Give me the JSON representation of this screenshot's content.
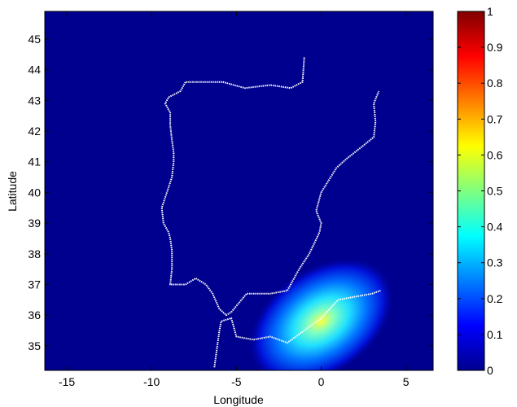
{
  "chart_data": {
    "type": "heatmap",
    "xlabel": "Longitude",
    "ylabel": "Latitude",
    "xlim": [
      -16.3,
      6.6
    ],
    "ylim": [
      34.2,
      45.9
    ],
    "xticks": [
      -15,
      -10,
      -5,
      0,
      5
    ],
    "xtick_labels": [
      "-15",
      "-10",
      "-5",
      "0",
      "5"
    ],
    "yticks": [
      35,
      36,
      37,
      38,
      39,
      40,
      41,
      42,
      43,
      44,
      45
    ],
    "ytick_labels": [
      "35",
      "36",
      "37",
      "38",
      "39",
      "40",
      "41",
      "42",
      "43",
      "44",
      "45"
    ],
    "colorbar": {
      "colormap": "jet",
      "range": [
        0,
        1
      ],
      "ticks": [
        0,
        0.1,
        0.2,
        0.3,
        0.4,
        0.5,
        0.6,
        0.7,
        0.8,
        0.9,
        1
      ],
      "tick_labels": [
        "0",
        "0.1",
        "0.2",
        "0.3",
        "0.4",
        "0.5",
        "0.6",
        "0.7",
        "0.8",
        "0.9",
        "1"
      ]
    },
    "hotspot": {
      "center_lon": 0.0,
      "center_lat": 35.8,
      "peak_value": 0.6,
      "orientation_deg": 35,
      "spread_major_deg": 2.0,
      "spread_minor_deg": 0.6
    },
    "coastlines": [
      {
        "name": "atlantic-west-coast",
        "points": [
          [
            -1.0,
            44.4
          ],
          [
            -1.1,
            43.6
          ],
          [
            -1.8,
            43.4
          ],
          [
            -3.0,
            43.5
          ],
          [
            -4.5,
            43.4
          ],
          [
            -5.8,
            43.6
          ],
          [
            -7.0,
            43.6
          ],
          [
            -8.0,
            43.6
          ],
          [
            -8.3,
            43.3
          ],
          [
            -9.0,
            43.1
          ],
          [
            -9.2,
            42.9
          ],
          [
            -8.9,
            42.6
          ],
          [
            -8.9,
            42.2
          ],
          [
            -8.8,
            41.7
          ],
          [
            -8.7,
            41.3
          ],
          [
            -8.7,
            41.0
          ],
          [
            -8.8,
            40.5
          ],
          [
            -9.1,
            40.0
          ],
          [
            -9.4,
            39.5
          ],
          [
            -9.3,
            39.0
          ],
          [
            -9.0,
            38.7
          ],
          [
            -8.9,
            38.5
          ],
          [
            -8.8,
            38.1
          ],
          [
            -8.8,
            37.5
          ],
          [
            -8.9,
            37.0
          ],
          [
            -8.0,
            37.0
          ],
          [
            -7.4,
            37.2
          ],
          [
            -6.8,
            37.0
          ],
          [
            -6.4,
            36.7
          ],
          [
            -6.0,
            36.2
          ],
          [
            -5.6,
            36.0
          ],
          [
            -5.3,
            36.1
          ]
        ]
      },
      {
        "name": "mediterranean-east-coast",
        "points": [
          [
            -5.3,
            36.1
          ],
          [
            -4.4,
            36.7
          ],
          [
            -3.0,
            36.7
          ],
          [
            -2.0,
            36.8
          ],
          [
            -1.3,
            37.5
          ],
          [
            -0.7,
            38.0
          ],
          [
            -0.1,
            38.7
          ],
          [
            0.0,
            39.0
          ],
          [
            -0.3,
            39.4
          ],
          [
            0.0,
            40.0
          ],
          [
            0.9,
            40.8
          ],
          [
            1.5,
            41.1
          ],
          [
            2.2,
            41.4
          ],
          [
            3.1,
            41.8
          ],
          [
            3.2,
            42.3
          ],
          [
            3.1,
            42.9
          ],
          [
            3.4,
            43.3
          ]
        ]
      },
      {
        "name": "north-africa-coast",
        "points": [
          [
            -6.3,
            34.3
          ],
          [
            -6.0,
            35.5
          ],
          [
            -5.9,
            35.8
          ],
          [
            -5.3,
            35.9
          ],
          [
            -5.0,
            35.3
          ],
          [
            -4.0,
            35.2
          ],
          [
            -3.0,
            35.3
          ],
          [
            -2.0,
            35.1
          ],
          [
            -1.0,
            35.5
          ],
          [
            0.0,
            35.9
          ],
          [
            1.0,
            36.5
          ],
          [
            2.0,
            36.6
          ],
          [
            3.0,
            36.7
          ],
          [
            3.5,
            36.8
          ]
        ]
      }
    ]
  }
}
